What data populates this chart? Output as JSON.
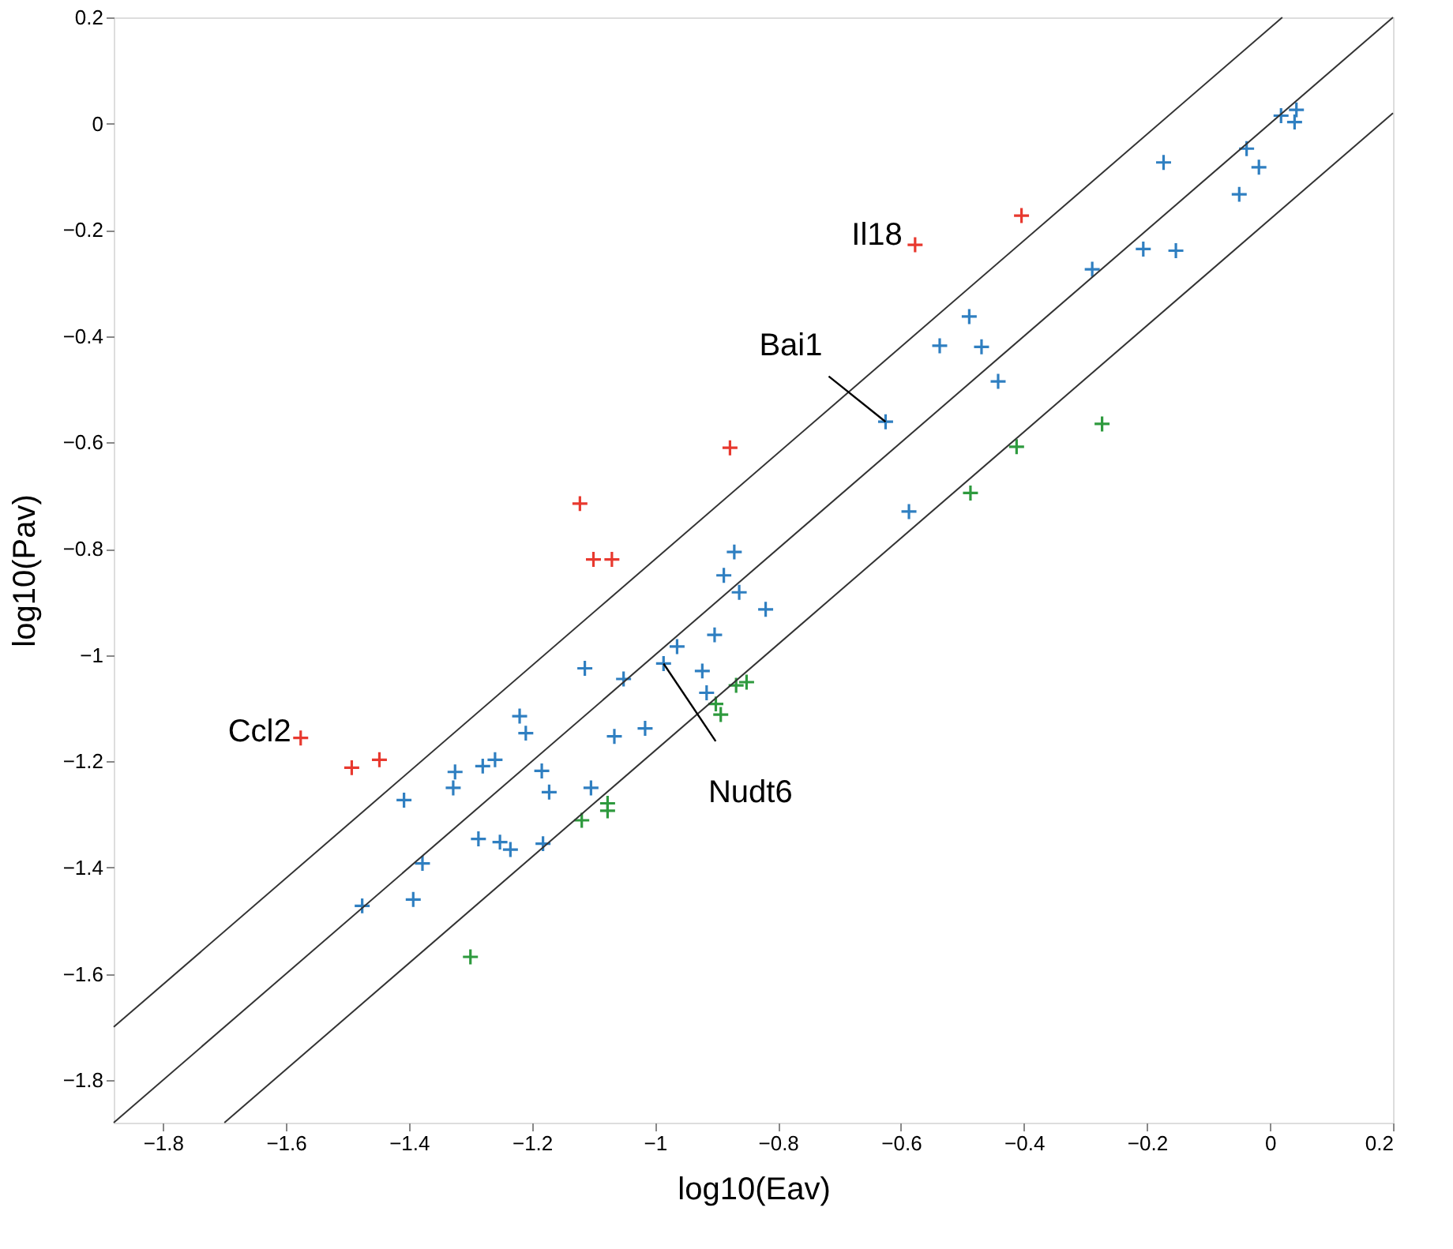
{
  "chart_data": {
    "type": "scatter",
    "xlabel": "log10(Eav)",
    "ylabel": "log10(Pav)",
    "xlim": [
      -1.88,
      0.2
    ],
    "ylim": [
      -1.88,
      0.2
    ],
    "xticks": [
      -1.8,
      -1.6,
      -1.4,
      -1.2,
      -1,
      -0.8,
      -0.6,
      -0.4,
      -0.2,
      0,
      0.2
    ],
    "yticks": [
      -1.8,
      -1.6,
      -1.4,
      -1.2,
      -1,
      -0.8,
      -0.6,
      -0.4,
      -0.2,
      0,
      0.2
    ],
    "grid": false,
    "series": [
      {
        "marker": "cross",
        "color": "#e8392f",
        "x": [
          -0.878,
          -1.122,
          -1.1,
          -1.07,
          -0.404,
          -0.577,
          -1.576,
          -1.493,
          -1.448
        ],
        "values": [
          -0.61,
          -0.715,
          -0.82,
          -0.82,
          -0.173,
          -0.228,
          -1.156,
          -1.212,
          -1.197
        ]
      },
      {
        "marker": "cross",
        "color": "#2f7fc1",
        "x": [
          0.018,
          0.043,
          0.04,
          -0.173,
          -0.038,
          -0.018,
          -0.05,
          -0.289,
          -0.206,
          -0.153,
          -0.489,
          -0.537,
          -0.469,
          -0.442,
          -0.625,
          -0.587,
          -0.871,
          -0.888,
          -0.863,
          -0.82,
          -0.903,
          -0.964,
          -0.986,
          -0.923,
          -0.916,
          -1.114,
          -1.051,
          -1.016,
          -1.066,
          -1.22,
          -1.21,
          -1.26,
          -1.28,
          -1.325,
          -1.328,
          -1.184,
          -1.172,
          -1.104,
          -1.408,
          -1.378,
          -1.476,
          -1.393,
          -1.287,
          -1.252,
          -1.235,
          -1.182
        ],
        "values": [
          0.015,
          0.026,
          0.003,
          -0.073,
          -0.047,
          -0.082,
          -0.133,
          -0.274,
          -0.236,
          -0.239,
          -0.363,
          -0.418,
          -0.42,
          -0.485,
          -0.561,
          -0.73,
          -0.806,
          -0.85,
          -0.882,
          -0.914,
          -0.962,
          -0.984,
          -1.016,
          -1.03,
          -1.071,
          -1.025,
          -1.045,
          -1.138,
          -1.153,
          -1.115,
          -1.147,
          -1.197,
          -1.209,
          -1.22,
          -1.25,
          -1.218,
          -1.258,
          -1.25,
          -1.273,
          -1.392,
          -1.472,
          -1.46,
          -1.346,
          -1.352,
          -1.366,
          -1.355
        ]
      },
      {
        "marker": "cross",
        "color": "#2e9a3e",
        "x": [
          -0.273,
          -0.412,
          -0.487,
          -1.119,
          -1.077,
          -1.077,
          -1.3,
          -0.901,
          -0.893,
          -0.868,
          -0.851
        ],
        "values": [
          -0.565,
          -0.608,
          -0.695,
          -1.311,
          -1.279,
          -1.293,
          -1.568,
          -1.092,
          -1.112,
          -1.057,
          -1.051
        ]
      },
      {
        "type": "line",
        "marker": "none",
        "line_style": "solid",
        "color": "#333333",
        "x": [
          -1.88,
          0.02
        ],
        "values": [
          -1.7,
          0.2
        ]
      },
      {
        "type": "line",
        "marker": "none",
        "line_style": "solid",
        "color": "#333333",
        "x": [
          -1.88,
          0.2
        ],
        "values": [
          -1.88,
          0.2
        ]
      },
      {
        "type": "line",
        "marker": "none",
        "line_style": "solid",
        "color": "#333333",
        "x": [
          -1.7,
          0.2
        ],
        "values": [
          -1.88,
          0.02
        ]
      }
    ],
    "annotations": [
      {
        "text": "Il18",
        "x": -0.577,
        "y": -0.228
      },
      {
        "text": "Bai1",
        "x": -0.625,
        "y": -0.561
      },
      {
        "text": "Ccl2",
        "x": -1.576,
        "y": -1.156
      },
      {
        "text": "Nudt6",
        "x": -0.986,
        "y": -1.016
      }
    ]
  }
}
